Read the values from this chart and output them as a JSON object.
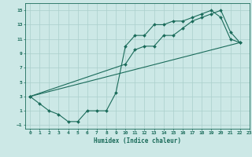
{
  "title": "",
  "xlabel": "Humidex (Indice chaleur)",
  "xlim": [
    -0.5,
    23
  ],
  "ylim": [
    -1.5,
    16
  ],
  "xticks": [
    0,
    1,
    2,
    3,
    4,
    5,
    6,
    7,
    8,
    9,
    10,
    11,
    12,
    13,
    14,
    15,
    16,
    17,
    18,
    19,
    20,
    21,
    22,
    23
  ],
  "yticks": [
    -1,
    1,
    3,
    5,
    7,
    9,
    11,
    13,
    15
  ],
  "bg_color": "#cce8e6",
  "grid_color": "#aacfcc",
  "line_color": "#1a6b5a",
  "line1_x": [
    0,
    1,
    2,
    3,
    4,
    5,
    6,
    7,
    8,
    9,
    10,
    11,
    12,
    13,
    14,
    15,
    16,
    17,
    18,
    19,
    20,
    21,
    22
  ],
  "line1_y": [
    3.0,
    2.0,
    1.0,
    0.5,
    -0.5,
    -0.5,
    1.0,
    1.0,
    1.0,
    3.5,
    10.0,
    11.5,
    11.5,
    13.0,
    13.0,
    13.5,
    13.5,
    14.0,
    14.5,
    15.0,
    14.0,
    11.0,
    10.5
  ],
  "line2_x": [
    0,
    10,
    11,
    12,
    13,
    14,
    15,
    16,
    17,
    18,
    19,
    20,
    21,
    22
  ],
  "line2_y": [
    3.0,
    7.5,
    9.5,
    10.0,
    10.0,
    11.5,
    11.5,
    12.5,
    13.5,
    14.0,
    14.5,
    15.0,
    12.0,
    10.5
  ],
  "line3_x": [
    0,
    22
  ],
  "line3_y": [
    3.0,
    10.5
  ]
}
